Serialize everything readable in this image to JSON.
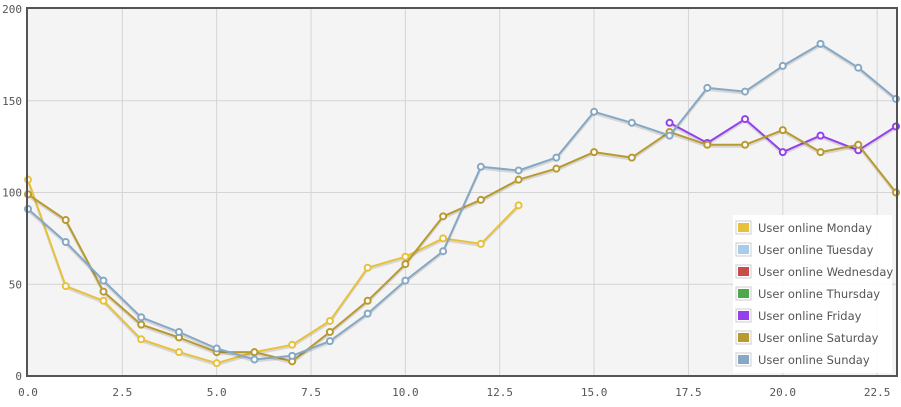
{
  "chart_data": {
    "type": "line",
    "title": "",
    "xlabel": "",
    "ylabel": "",
    "xlim": [
      0,
      23
    ],
    "ylim": [
      0,
      200
    ],
    "x_ticks": [
      "0.0",
      "2.5",
      "5.0",
      "7.5",
      "10.0",
      "12.5",
      "15.0",
      "17.5",
      "20.0",
      "22.5"
    ],
    "y_ticks": [
      "0",
      "50",
      "100",
      "150",
      "200"
    ],
    "grid": true,
    "legend_position": "bottom-right",
    "background_color": "#f4f4f4",
    "series": [
      {
        "name": "User online Monday",
        "color": "#e8c13c",
        "points": [
          [
            0,
            107
          ],
          [
            1,
            49
          ],
          [
            2,
            41
          ],
          [
            3,
            20
          ],
          [
            4,
            13
          ],
          [
            5,
            7
          ],
          [
            6,
            13
          ],
          [
            7,
            17
          ],
          [
            8,
            30
          ],
          [
            9,
            59
          ],
          [
            10,
            65
          ],
          [
            11,
            75
          ],
          [
            12,
            72
          ],
          [
            13,
            93
          ]
        ]
      },
      {
        "name": "User online Tuesday",
        "color": "#a9cbec",
        "points": []
      },
      {
        "name": "User online Wednesday",
        "color": "#cb4b4b",
        "points": []
      },
      {
        "name": "User online Thursday",
        "color": "#4da74d",
        "points": []
      },
      {
        "name": "User online Friday",
        "color": "#9440ed",
        "points": [
          [
            17,
            138
          ],
          [
            18,
            127
          ],
          [
            19,
            140
          ],
          [
            20,
            122
          ],
          [
            21,
            131
          ],
          [
            22,
            123
          ],
          [
            23,
            136
          ]
        ]
      },
      {
        "name": "User online Saturday",
        "color": "#b89a2f",
        "points": [
          [
            0,
            99
          ],
          [
            1,
            85
          ],
          [
            2,
            46
          ],
          [
            3,
            28
          ],
          [
            4,
            21
          ],
          [
            5,
            13
          ],
          [
            6,
            13
          ],
          [
            7,
            8
          ],
          [
            8,
            24
          ],
          [
            9,
            41
          ],
          [
            10,
            61
          ],
          [
            11,
            87
          ],
          [
            12,
            96
          ],
          [
            13,
            107
          ],
          [
            14,
            113
          ],
          [
            15,
            122
          ],
          [
            16,
            119
          ],
          [
            17,
            133
          ],
          [
            18,
            126
          ],
          [
            19,
            126
          ],
          [
            20,
            134
          ],
          [
            21,
            122
          ],
          [
            22,
            126
          ],
          [
            23,
            100
          ]
        ]
      },
      {
        "name": "User online Sunday",
        "color": "#86a8c4",
        "points": [
          [
            0,
            91
          ],
          [
            1,
            73
          ],
          [
            2,
            52
          ],
          [
            3,
            32
          ],
          [
            4,
            24
          ],
          [
            5,
            15
          ],
          [
            6,
            9
          ],
          [
            7,
            11
          ],
          [
            8,
            19
          ],
          [
            9,
            34
          ],
          [
            10,
            52
          ],
          [
            11,
            68
          ],
          [
            12,
            114
          ],
          [
            13,
            112
          ],
          [
            14,
            119
          ],
          [
            15,
            144
          ],
          [
            16,
            138
          ],
          [
            17,
            131
          ],
          [
            18,
            157
          ],
          [
            19,
            155
          ],
          [
            20,
            169
          ],
          [
            21,
            181
          ],
          [
            22,
            168
          ],
          [
            23,
            151
          ]
        ]
      }
    ]
  }
}
